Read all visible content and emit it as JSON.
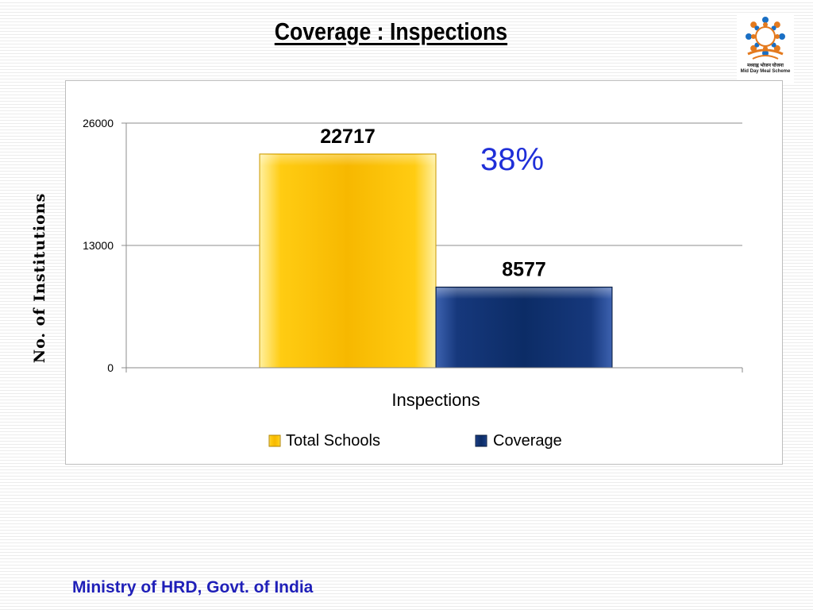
{
  "slide": {
    "title": "Coverage : Inspections",
    "footer": "Ministry of HRD, Govt. of India",
    "logo_caption_top": "मध्याह्न भोजन योजना",
    "logo_caption_bottom": "Mid Day Meal Scheme",
    "annotation": "38%"
  },
  "colors": {
    "total_schools": "#f7b800",
    "coverage": "#0c2c66",
    "annotation": "#1f2fd8",
    "footer": "#1f1fb8"
  },
  "chart_data": {
    "type": "bar",
    "title": "Coverage : Inspections",
    "xlabel": "Inspections",
    "ylabel": "No. of Institutions",
    "categories": [
      "Inspections"
    ],
    "series": [
      {
        "name": "Total Schools",
        "values": [
          22717
        ]
      },
      {
        "name": "Coverage",
        "values": [
          8577
        ]
      }
    ],
    "data_labels": [
      "22717",
      "8577"
    ],
    "ylim": [
      0,
      26000
    ],
    "yticks": [
      0,
      13000,
      26000
    ],
    "ytick_labels": [
      "0",
      "13000",
      "26000"
    ],
    "grid": true,
    "legend": "bottom",
    "annotation": "38%"
  }
}
